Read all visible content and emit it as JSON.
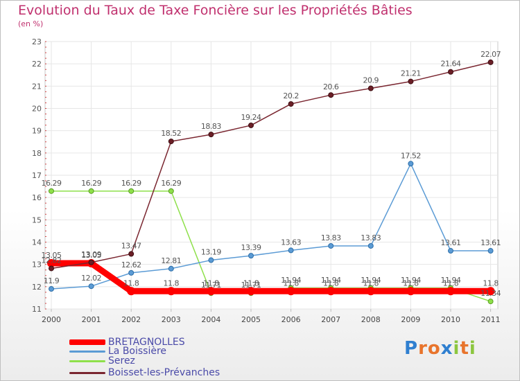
{
  "title": "Evolution du Taux de Taxe Foncière sur les Propriétés Bâties",
  "unit_label": "(en %)",
  "logo": {
    "text": "Proxiti"
  },
  "chart_data": {
    "type": "line",
    "title": "Evolution du Taux de Taxe Foncière sur les Propriétés Bâties",
    "ylabel": "(en %)",
    "xlabel": "",
    "ylim": [
      11,
      23
    ],
    "yticks": [
      11,
      12,
      13,
      14,
      15,
      16,
      17,
      18,
      19,
      20,
      21,
      22,
      23
    ],
    "categories": [
      "2000",
      "2001",
      "2002",
      "2003",
      "2004",
      "2005",
      "2006",
      "2007",
      "2008",
      "2009",
      "2010",
      "2011"
    ],
    "series": [
      {
        "name": "BRETAGNOLLES",
        "color": "#ff0000",
        "values": [
          13.05,
          13.05,
          11.8,
          11.8,
          11.8,
          11.8,
          11.8,
          11.8,
          11.8,
          11.8,
          11.8,
          11.8
        ],
        "labels": [
          "13.05",
          "13.05",
          "11.8",
          "11.8",
          "11.8",
          "11.8",
          "11.8",
          "11.8",
          "11.8",
          "11.8",
          "11.8",
          "11.8"
        ]
      },
      {
        "name": "La Boissière",
        "color": "#5b9bd5",
        "values": [
          11.9,
          12.02,
          12.62,
          12.81,
          13.19,
          13.39,
          13.63,
          13.83,
          13.83,
          17.52,
          13.61,
          13.61
        ],
        "labels": [
          "11.9",
          "12.02",
          "12.62",
          "12.81",
          "13.19",
          "13.39",
          "13.63",
          "13.83",
          "13.83",
          "17.52",
          "13.61",
          "13.61"
        ]
      },
      {
        "name": "Serez",
        "color": "#8ee04a",
        "values": [
          16.29,
          16.29,
          16.29,
          16.29,
          11.71,
          11.71,
          11.94,
          11.94,
          11.94,
          11.94,
          11.94,
          11.34
        ],
        "labels": [
          "16.29",
          "16.29",
          "16.29",
          "16.29",
          "11.71",
          "11.71",
          "11.94",
          "11.94",
          "11.94",
          "11.94",
          "11.94",
          "11.34"
        ]
      },
      {
        "name": "Boisset-les-Prévanches",
        "color": "#7a2630",
        "values": [
          12.82,
          13.09,
          13.47,
          18.52,
          18.83,
          19.24,
          20.2,
          20.6,
          20.9,
          21.21,
          21.64,
          22.07
        ],
        "labels": [
          "12.82",
          "13.09",
          "13.47",
          "18.52",
          "18.83",
          "19.24",
          "20.2",
          "20.6",
          "20.9",
          "21.21",
          "21.64",
          "22.07"
        ]
      }
    ]
  }
}
